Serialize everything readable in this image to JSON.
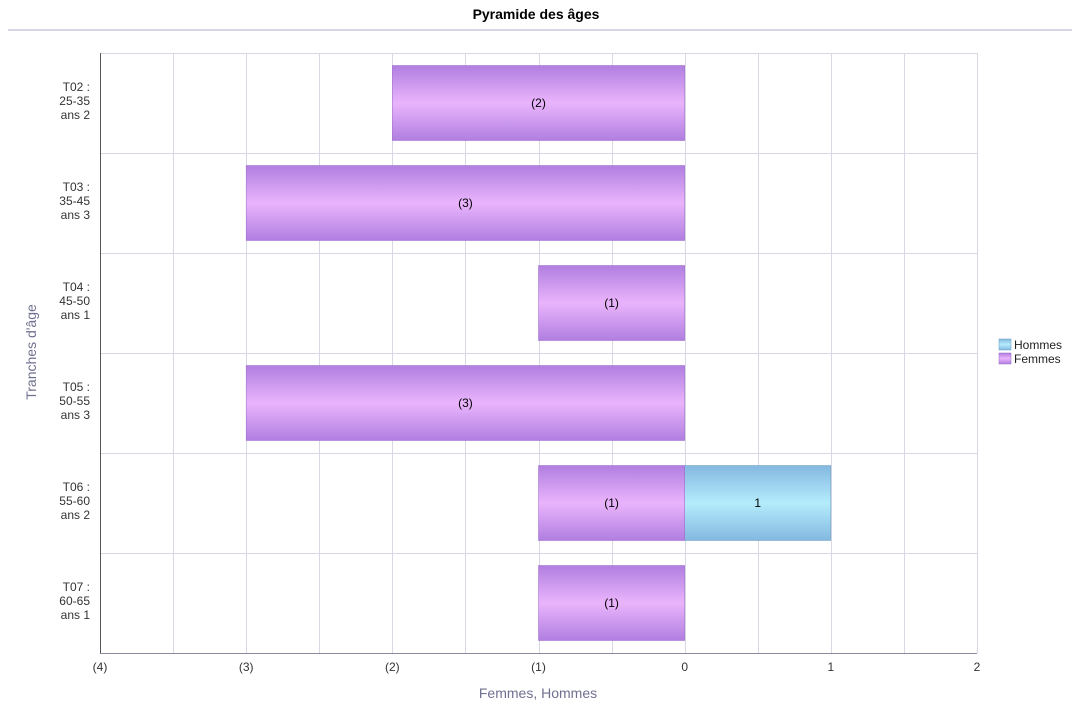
{
  "chart_data": {
    "type": "bar",
    "orientation": "horizontal",
    "title": "Pyramide des âges",
    "xlabel": "Femmes, Hommes",
    "ylabel": "Tranches d'âge",
    "xlim": [
      -4,
      2
    ],
    "xticks": [
      {
        "value": -4,
        "label": "(4)"
      },
      {
        "value": -3,
        "label": "(3)"
      },
      {
        "value": -2,
        "label": "(2)"
      },
      {
        "value": -1,
        "label": "(1)"
      },
      {
        "value": 0,
        "label": "0"
      },
      {
        "value": 1,
        "label": "1"
      },
      {
        "value": 2,
        "label": "2"
      }
    ],
    "categories": [
      [
        "T02 :",
        "25-35",
        "ans 2"
      ],
      [
        "T03 :",
        "35-45",
        "ans 3"
      ],
      [
        "T04 :",
        "45-50",
        "ans 1"
      ],
      [
        "T05 :",
        "50-55",
        "ans 3"
      ],
      [
        "T06 :",
        "55-60",
        "ans 2"
      ],
      [
        "T07 :",
        "60-65",
        "ans 1"
      ]
    ],
    "series": [
      {
        "name": "Hommes",
        "color": "#8ec8e8",
        "values": [
          0,
          0,
          0,
          0,
          1,
          0
        ],
        "labels": [
          "",
          "",
          "",
          "",
          "1",
          ""
        ]
      },
      {
        "name": "Femmes",
        "color": "#c890ec",
        "values": [
          -2,
          -3,
          -1,
          -3,
          -1,
          -1
        ],
        "labels": [
          "(2)",
          "(3)",
          "(1)",
          "(3)",
          "(1)",
          "(1)"
        ]
      }
    ],
    "grid": true,
    "legend": "right"
  }
}
